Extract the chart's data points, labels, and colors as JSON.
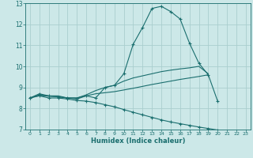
{
  "xlabel": "Humidex (Indice chaleur)",
  "xlim_min": -0.5,
  "xlim_max": 23.5,
  "ylim_min": 7.0,
  "ylim_max": 13.0,
  "yticks": [
    7,
    8,
    9,
    10,
    11,
    12,
    13
  ],
  "xticks": [
    0,
    1,
    2,
    3,
    4,
    5,
    6,
    7,
    8,
    9,
    10,
    11,
    12,
    13,
    14,
    15,
    16,
    17,
    18,
    19,
    20,
    21,
    22,
    23
  ],
  "bg_color": "#cce8e8",
  "grid_color": "#aacece",
  "line_color": "#1a6e6e",
  "lines": [
    {
      "x": [
        0,
        1,
        2,
        3,
        4,
        5,
        6,
        7,
        8,
        9,
        10,
        11,
        12,
        13,
        14,
        15,
        16,
        17,
        18,
        19,
        20,
        21,
        22,
        23
      ],
      "y": [
        8.5,
        8.7,
        8.6,
        8.55,
        8.5,
        8.45,
        8.6,
        8.5,
        9.0,
        9.1,
        9.65,
        11.05,
        11.85,
        12.75,
        12.85,
        12.6,
        12.25,
        11.1,
        10.15,
        9.6,
        8.35,
        null,
        null,
        null
      ],
      "has_markers": true
    },
    {
      "x": [
        0,
        1,
        2,
        3,
        4,
        5,
        6,
        7,
        8,
        9,
        10,
        11,
        12,
        13,
        14,
        15,
        16,
        17,
        18,
        19,
        20,
        21,
        22,
        23
      ],
      "y": [
        8.5,
        8.65,
        8.6,
        8.6,
        8.5,
        8.5,
        8.65,
        8.85,
        9.0,
        9.1,
        9.3,
        9.45,
        9.55,
        9.65,
        9.75,
        9.82,
        9.88,
        9.93,
        10.0,
        9.65,
        null,
        null,
        null,
        null
      ],
      "has_markers": false
    },
    {
      "x": [
        0,
        1,
        2,
        3,
        4,
        5,
        6,
        7,
        8,
        9,
        10,
        11,
        12,
        13,
        14,
        15,
        16,
        17,
        18,
        19,
        20,
        21,
        22,
        23
      ],
      "y": [
        8.5,
        8.62,
        8.58,
        8.56,
        8.5,
        8.5,
        8.6,
        8.7,
        8.75,
        8.8,
        8.88,
        8.96,
        9.05,
        9.14,
        9.22,
        9.3,
        9.38,
        9.45,
        9.52,
        9.6,
        null,
        null,
        null,
        null
      ],
      "has_markers": false
    },
    {
      "x": [
        0,
        1,
        2,
        3,
        4,
        5,
        6,
        7,
        8,
        9,
        10,
        11,
        12,
        13,
        14,
        15,
        16,
        17,
        18,
        19,
        20,
        21,
        22,
        23
      ],
      "y": [
        8.5,
        8.6,
        8.5,
        8.5,
        8.45,
        8.38,
        8.35,
        8.28,
        8.18,
        8.08,
        7.95,
        7.82,
        7.7,
        7.58,
        7.46,
        7.36,
        7.28,
        7.2,
        7.12,
        7.05,
        6.98,
        6.9,
        6.75,
        6.65
      ],
      "has_markers": true
    }
  ]
}
